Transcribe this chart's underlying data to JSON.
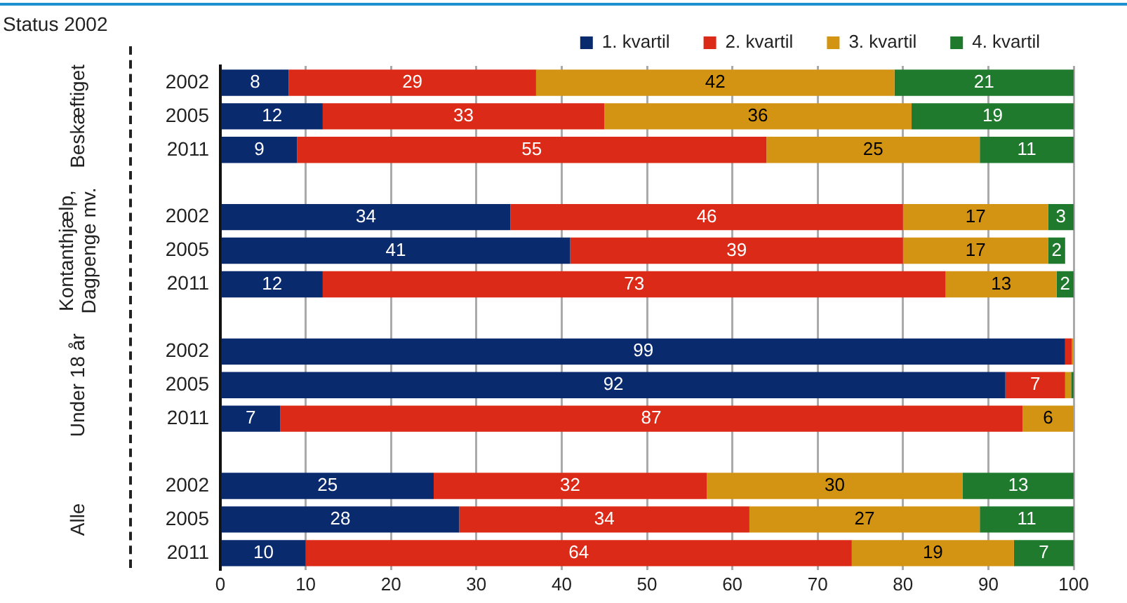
{
  "chart_data": {
    "type": "bar",
    "orientation": "horizontal",
    "stacked": true,
    "ylabel": "Status 2002",
    "categories": [
      "2002",
      "2005",
      "2011",
      null,
      "2002",
      "2005",
      "2011",
      null,
      "2002",
      "2005",
      "2011",
      null,
      "2002",
      "2005",
      "2011"
    ],
    "annotations": [
      "Beskæftiget",
      "Kontanthjælp, Dagpenge mv.",
      "Under 18 år",
      "Alle"
    ],
    "series": [
      {
        "name": "1. kvartil",
        "color": "#0a2a6e",
        "values": [
          8,
          12,
          9,
          null,
          34,
          41,
          12,
          null,
          99,
          92,
          7,
          null,
          25,
          28,
          10
        ],
        "value_labels": [
          "8",
          "12",
          "9",
          null,
          "34",
          "41",
          "12",
          null,
          "99",
          "92",
          "7",
          null,
          "25",
          "28",
          "10"
        ]
      },
      {
        "name": "2. kvartil",
        "color": "#dc2a18",
        "values": [
          29,
          33,
          55,
          null,
          46,
          39,
          73,
          null,
          0.8,
          7,
          87,
          null,
          32,
          34,
          64
        ],
        "value_labels": [
          "29",
          "33",
          "55",
          null,
          "46",
          "39",
          "73",
          null,
          null,
          "7",
          "87",
          null,
          "32",
          "34",
          "64"
        ]
      },
      {
        "name": "3. kvartil",
        "color": "#d39413",
        "values": [
          42,
          36,
          25,
          null,
          17,
          17,
          13,
          null,
          0.2,
          0.7,
          6,
          null,
          30,
          27,
          19
        ],
        "value_labels": [
          "42",
          "36",
          "25",
          null,
          "17",
          "17",
          "13",
          null,
          null,
          null,
          "6",
          null,
          "30",
          "27",
          "19"
        ]
      },
      {
        "name": "4. kvartil",
        "color": "#1f7a2e",
        "values": [
          21,
          19,
          11,
          null,
          3,
          2,
          2,
          null,
          0,
          0.3,
          null,
          null,
          13,
          11,
          7
        ],
        "value_labels": [
          "21",
          "19",
          "11",
          null,
          "3",
          "2",
          "2",
          null,
          null,
          null,
          null,
          null,
          "13",
          "11",
          "7"
        ]
      }
    ],
    "xlim": [
      0,
      100
    ],
    "xticks": [
      0,
      10,
      20,
      30,
      40,
      50,
      60,
      70,
      80,
      90,
      100
    ],
    "grid": "x",
    "legend": "top right"
  }
}
